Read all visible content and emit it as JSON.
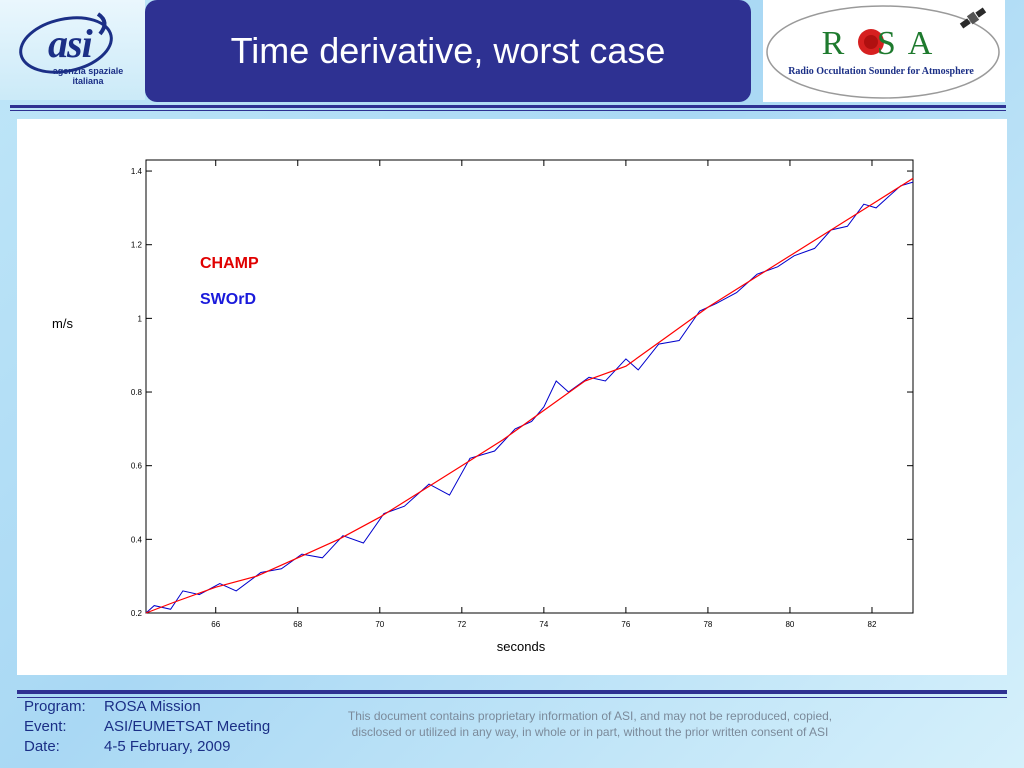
{
  "header": {
    "title": "Time derivative, worst case",
    "asi_logo": {
      "word": "asi",
      "tagline": "agenzia spaziale italiana"
    },
    "rosa_logo": {
      "word": "ROSA",
      "tagline": "Radio Occultation Sounder for Atmosphere"
    }
  },
  "chart_data": {
    "type": "line",
    "title": "",
    "xlabel": "seconds",
    "ylabel": "m/s",
    "xlim": [
      64.3,
      83
    ],
    "ylim": [
      0.2,
      1.43
    ],
    "xticks": [
      "66",
      "68",
      "70",
      "72",
      "74",
      "76",
      "78",
      "80",
      "82"
    ],
    "yticks": [
      "0.2",
      "0.4",
      "0.6",
      "0.8",
      "1",
      "1.2",
      "1.4"
    ],
    "grid": false,
    "legend": {
      "placement": "upper-left",
      "entries": [
        "CHAMP",
        "SWOrD"
      ]
    },
    "series": [
      {
        "name": "CHAMP",
        "color": "#ff0000",
        "x": [
          64.3,
          65,
          66,
          67,
          68,
          69,
          70,
          71,
          72,
          73,
          74,
          75,
          76,
          77,
          78,
          79,
          80,
          81,
          82,
          83
        ],
        "y": [
          0.2,
          0.23,
          0.27,
          0.3,
          0.35,
          0.4,
          0.46,
          0.53,
          0.6,
          0.67,
          0.75,
          0.83,
          0.87,
          0.95,
          1.03,
          1.1,
          1.17,
          1.24,
          1.31,
          1.38
        ]
      },
      {
        "name": "SWOrD",
        "color": "#0000cc",
        "x": [
          64.3,
          64.5,
          64.9,
          65.2,
          65.6,
          66.1,
          66.5,
          67.1,
          67.6,
          68.1,
          68.6,
          69.1,
          69.6,
          70.1,
          70.6,
          71.2,
          71.7,
          72.2,
          72.8,
          73.3,
          73.7,
          74.0,
          74.3,
          74.6,
          75.1,
          75.5,
          76.0,
          76.3,
          76.8,
          77.3,
          77.8,
          78.2,
          78.7,
          79.2,
          79.7,
          80.1,
          80.6,
          81.0,
          81.4,
          81.8,
          82.1,
          82.4,
          82.7,
          83.0
        ],
        "y": [
          0.2,
          0.22,
          0.21,
          0.26,
          0.25,
          0.28,
          0.26,
          0.31,
          0.32,
          0.36,
          0.35,
          0.41,
          0.39,
          0.47,
          0.49,
          0.55,
          0.52,
          0.62,
          0.64,
          0.7,
          0.72,
          0.76,
          0.83,
          0.8,
          0.84,
          0.83,
          0.89,
          0.86,
          0.93,
          0.94,
          1.02,
          1.04,
          1.07,
          1.12,
          1.14,
          1.17,
          1.19,
          1.24,
          1.25,
          1.31,
          1.3,
          1.33,
          1.36,
          1.37
        ]
      }
    ]
  },
  "footer": {
    "program_label": "Program:",
    "program_value": "ROSA Mission",
    "event_label": "Event:",
    "event_value": "ASI/EUMETSAT Meeting",
    "date_label": "Date:",
    "date_value": "4-5 February, 2009",
    "notice": "This document contains proprietary information of ASI, and may not be reproduced, copied, disclosed or utilized in any way, in whole or in part, without the prior written consent of ASI"
  }
}
